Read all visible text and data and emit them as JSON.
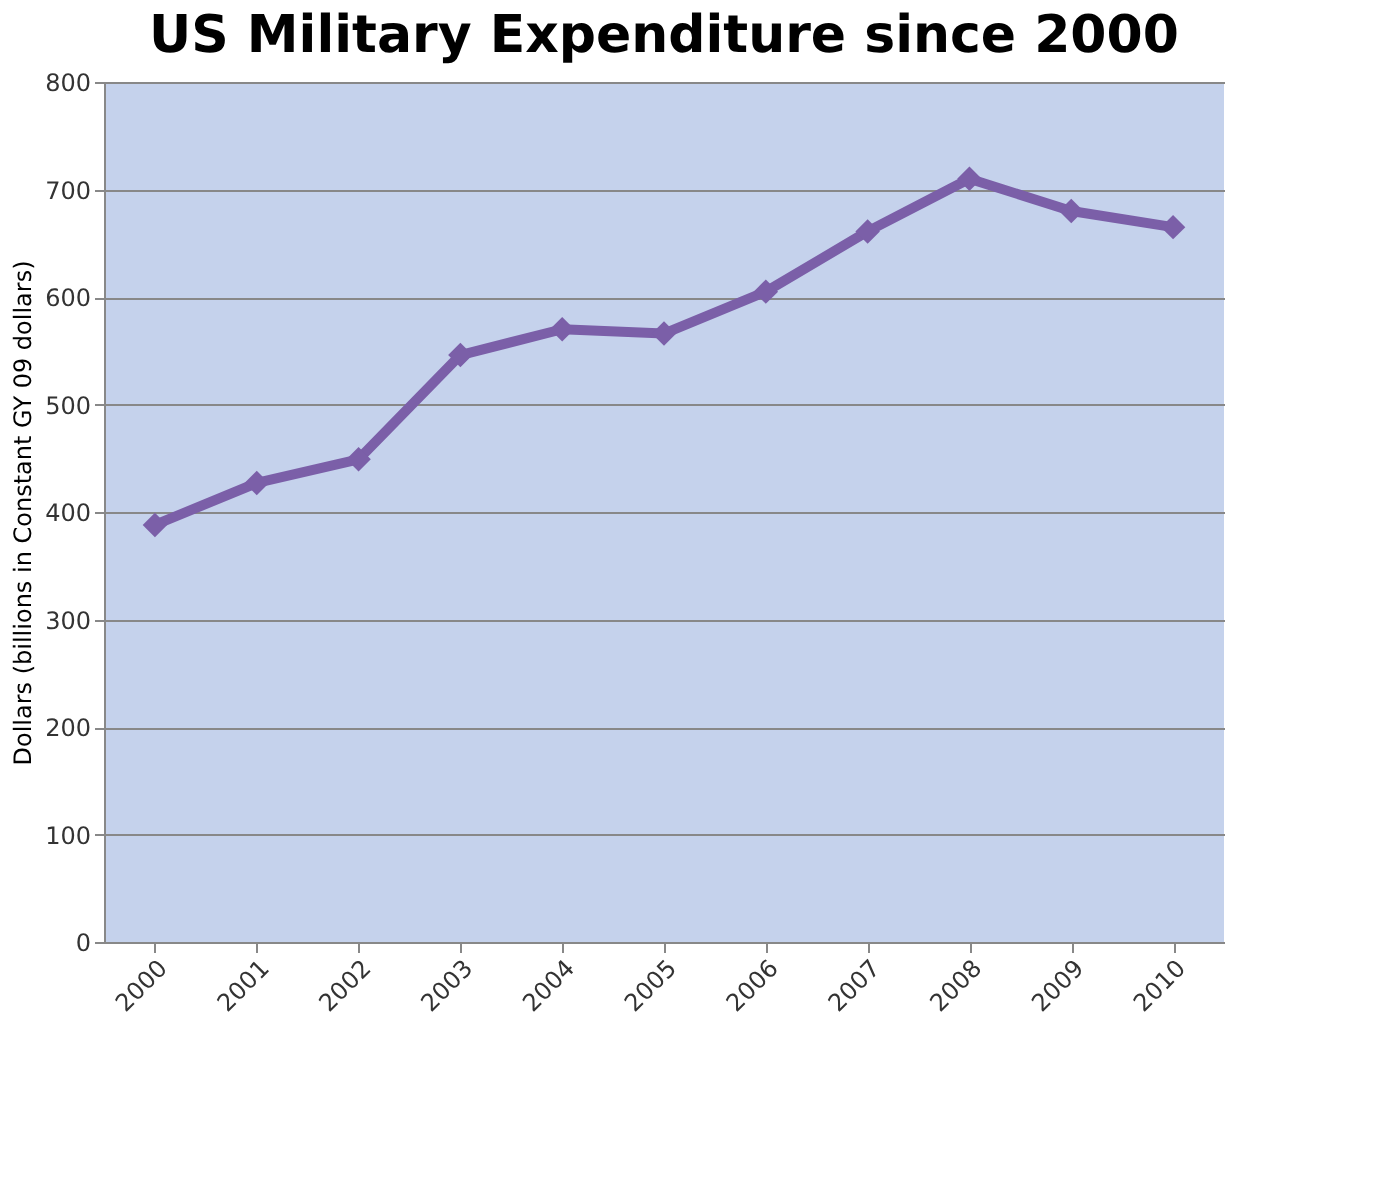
{
  "chart_data": {
    "type": "line",
    "title": "US Military Expenditure since 2000",
    "ylabel": "Dollars (billions in Constant GY 09 dollars)",
    "categories": [
      "2000",
      "2001",
      "2002",
      "2003",
      "2004",
      "2005",
      "2006",
      "2007",
      "2008",
      "2009",
      "2010"
    ],
    "series": [
      {
        "color": "#7b5fa8",
        "values": [
          388,
          427,
          449,
          546,
          570,
          566,
          605,
          661,
          710,
          680,
          665
        ]
      }
    ],
    "ylim": [
      0,
      800
    ],
    "yticks": [
      0,
      100,
      200,
      300,
      400,
      500,
      600,
      700,
      800
    ],
    "grid": "y",
    "marker": "diamond",
    "line_style": "solid",
    "legend": false
  }
}
